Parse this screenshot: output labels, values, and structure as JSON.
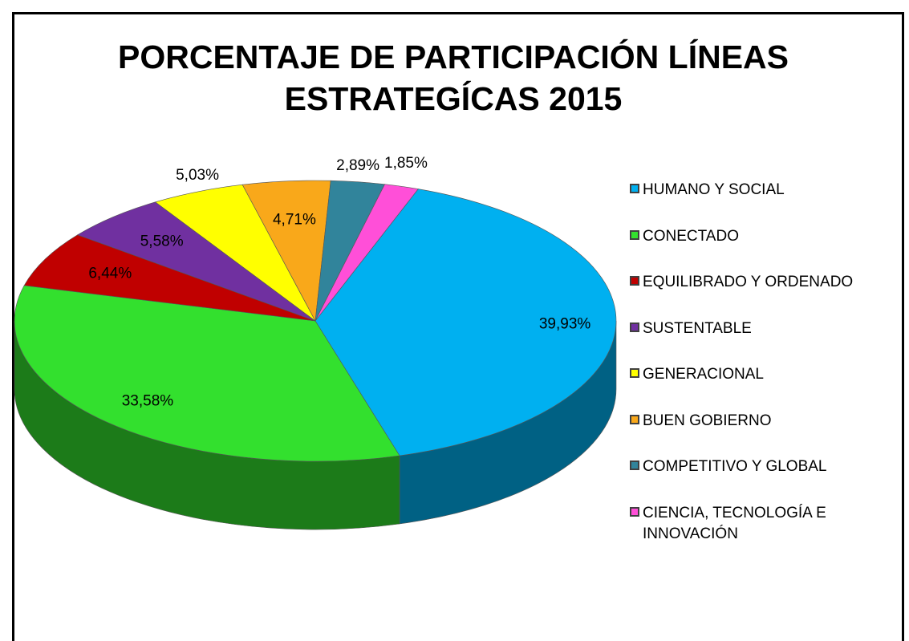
{
  "chart_data": {
    "type": "pie",
    "title": "PORCENTAJE DE PARTICIPACIÓN  LÍNEAS ESTRATEGÍCAS 2015",
    "categories": [
      "HUMANO Y SOCIAL",
      "CONECTADO",
      "EQUILIBRADO Y ORDENADO",
      "SUSTENTABLE",
      "GENERACIONAL",
      "BUEN GOBIERNO",
      "COMPETITIVO Y GLOBAL",
      "CIENCIA, TECNOLOGÍA E INNOVACIÓN"
    ],
    "values": [
      39.93,
      33.58,
      6.44,
      5.58,
      5.03,
      4.71,
      2.89,
      1.85
    ],
    "value_labels": [
      "39,93%",
      "33,58%",
      "6,44%",
      "5,58%",
      "5,03%",
      "4,71%",
      "2,89%",
      "1,85%"
    ],
    "colors": [
      "#00b0f0",
      "#33e02e",
      "#c00000",
      "#7030a0",
      "#ffff00",
      "#f9a81a",
      "#31849b",
      "#ff4fd8"
    ],
    "legend": "right"
  }
}
